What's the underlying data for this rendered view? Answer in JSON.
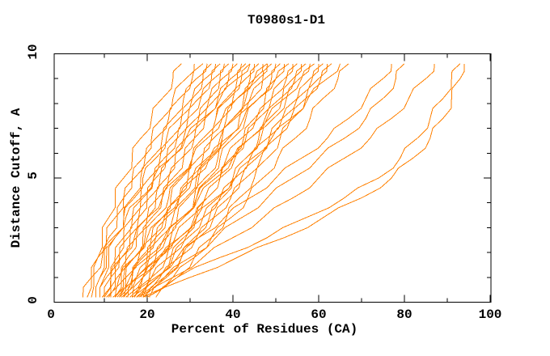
{
  "title": "T0980s1-D1",
  "chart_data": {
    "type": "line",
    "title": "T0980s1-D1",
    "xlabel": "Percent of Residues (CA)",
    "ylabel": "Distance Cutoff, A",
    "xlim": [
      0,
      100
    ],
    "ylim": [
      0,
      10
    ],
    "grid": false,
    "legend": null,
    "axis_color": "#000000",
    "line_color": "#ff8000",
    "x_major_ticks": [
      0,
      20,
      40,
      60,
      80,
      100
    ],
    "x_minor_ticks": [
      10,
      30,
      50,
      70,
      90
    ],
    "x_tick_labels": [
      "0",
      "20",
      "40",
      "60",
      "80",
      "100"
    ],
    "y_major_ticks": [
      0,
      5,
      10
    ],
    "y_minor_ticks": [
      1,
      2,
      3,
      4,
      6,
      7,
      8,
      9
    ],
    "y_tick_labels": [
      "0",
      "5",
      "10"
    ],
    "y_levels": [
      0.2,
      1.0,
      1.8,
      2.6,
      3.4,
      4.2,
      5.0,
      5.8,
      6.6,
      7.4,
      8.2,
      9.0,
      9.6
    ],
    "series": [
      {
        "x": [
          7,
          7.5,
          8.5,
          9.5,
          11,
          12.5,
          14.5,
          16.5,
          18.5,
          21,
          23.5,
          26,
          28
        ]
      },
      {
        "x": [
          8,
          9,
          10,
          11,
          13,
          14.5,
          16.5,
          19,
          21,
          23.5,
          26,
          29,
          31
        ]
      },
      {
        "x": [
          6,
          7,
          8.5,
          10.5,
          12.5,
          14.5,
          17,
          19.5,
          22,
          25,
          27.5,
          30.5,
          33
        ]
      },
      {
        "x": [
          9,
          10,
          11,
          12.5,
          14.5,
          16.5,
          18.5,
          21,
          23.5,
          26,
          28.5,
          31.5,
          34
        ]
      },
      {
        "x": [
          10,
          11.5,
          13,
          14.5,
          16.5,
          18.5,
          20.5,
          23,
          25.5,
          28,
          30.5,
          33,
          35
        ]
      },
      {
        "x": [
          8,
          9,
          10.5,
          12.5,
          14.5,
          17,
          19,
          22,
          24.5,
          27.5,
          30.5,
          33.5,
          36
        ]
      },
      {
        "x": [
          11,
          12.5,
          14,
          16,
          18,
          20,
          22,
          24.5,
          27,
          29.5,
          32,
          35,
          37
        ]
      },
      {
        "x": [
          9,
          10.5,
          12.5,
          14.5,
          16.5,
          19,
          21.5,
          24,
          27,
          29.5,
          32.5,
          35.5,
          38
        ]
      },
      {
        "x": [
          12.5,
          14,
          15.5,
          17.5,
          20,
          22,
          24.5,
          26.5,
          29,
          32,
          34.5,
          37,
          39
        ]
      },
      {
        "x": [
          10,
          11.5,
          13.5,
          15.5,
          18,
          20.5,
          23,
          25.5,
          28.5,
          31.5,
          34.5,
          37.5,
          40
        ]
      },
      {
        "x": [
          13,
          15,
          17,
          19,
          21,
          23.5,
          26,
          28.5,
          31,
          33.5,
          36,
          39,
          41
        ]
      },
      {
        "x": [
          11.5,
          13,
          15,
          17.5,
          20,
          22.5,
          25,
          28,
          31,
          33.5,
          36.5,
          39.5,
          42
        ]
      },
      {
        "x": [
          14.5,
          16.5,
          18.5,
          21,
          23.5,
          25.5,
          28,
          30.5,
          33,
          36,
          38.5,
          41,
          43
        ]
      },
      {
        "x": [
          5,
          7,
          9.5,
          12,
          15,
          18.5,
          21.5,
          25.5,
          29,
          33,
          37,
          41,
          44
        ]
      },
      {
        "x": [
          12.5,
          14.5,
          17,
          19.5,
          22,
          25,
          27.5,
          30.5,
          33,
          36,
          39,
          42,
          44
        ]
      },
      {
        "x": [
          15.5,
          17.5,
          20,
          22,
          24.5,
          27,
          29.5,
          32,
          35,
          37.5,
          40,
          43,
          45
        ]
      },
      {
        "x": [
          13.5,
          16.5,
          19,
          22,
          24.5,
          27.5,
          30,
          33,
          35.5,
          38.5,
          41,
          44,
          46
        ]
      },
      {
        "x": [
          16.5,
          19,
          22,
          24.5,
          27,
          29.5,
          32,
          35,
          37.5,
          40,
          42.5,
          45,
          47
        ]
      },
      {
        "x": [
          9.5,
          11.5,
          14,
          17,
          20,
          23.5,
          27,
          30.5,
          34,
          37.5,
          41,
          45,
          48
        ]
      },
      {
        "x": [
          14.5,
          17.5,
          20.5,
          23,
          26,
          29,
          31.5,
          34.5,
          37.5,
          40,
          43,
          46,
          48
        ]
      },
      {
        "x": [
          17.5,
          20.5,
          23,
          25.5,
          28.5,
          31,
          33.5,
          36.5,
          39,
          41.5,
          44.5,
          47,
          49
        ]
      },
      {
        "x": [
          12.5,
          15,
          18,
          21,
          24,
          27.5,
          30.5,
          34,
          37,
          40.5,
          44,
          47.5,
          50
        ]
      },
      {
        "x": [
          16,
          19,
          22.5,
          25.5,
          28.5,
          31.5,
          34.5,
          37,
          40,
          43,
          46,
          49,
          51
        ]
      },
      {
        "x": [
          19,
          22.5,
          25.5,
          28.5,
          31.5,
          34,
          37,
          39.5,
          42.5,
          45,
          47.5,
          50,
          52
        ]
      },
      {
        "x": [
          10.5,
          13.5,
          17,
          20,
          23.5,
          27.5,
          31,
          34.5,
          38.5,
          42.5,
          46,
          50,
          53
        ]
      },
      {
        "x": [
          17,
          21,
          24.5,
          27.5,
          31,
          34,
          37,
          40,
          43,
          46,
          49,
          52,
          54
        ]
      },
      {
        "x": [
          14,
          17.5,
          21,
          24.5,
          28,
          31.5,
          35,
          38.5,
          42,
          45.5,
          49,
          52.5,
          55
        ]
      },
      {
        "x": [
          20.5,
          24.5,
          28,
          31,
          34.5,
          37.5,
          40,
          43,
          46,
          48.5,
          51.5,
          54,
          56
        ]
      },
      {
        "x": [
          15,
          19,
          23,
          26.5,
          30,
          33.5,
          37,
          40.5,
          44,
          47.5,
          51,
          54.5,
          57
        ]
      },
      {
        "x": [
          18.5,
          22.5,
          26,
          29.5,
          33,
          36.5,
          40,
          43,
          46.5,
          49.5,
          52.5,
          55.5,
          58
        ]
      },
      {
        "x": [
          12,
          16,
          20,
          24,
          28,
          32,
          36,
          40,
          44,
          48,
          52,
          56,
          59
        ]
      },
      {
        "x": [
          19.5,
          24,
          28,
          32,
          35.5,
          39,
          42,
          45.5,
          48.5,
          51.5,
          55,
          58,
          60
        ]
      },
      {
        "x": [
          16.5,
          21,
          25,
          29,
          33,
          37,
          40.5,
          44,
          48,
          51.5,
          55,
          58.5,
          61
        ]
      },
      {
        "x": [
          22,
          27,
          31,
          35,
          38.5,
          41.5,
          45,
          48,
          51,
          54,
          57,
          60,
          62
        ]
      },
      {
        "x": [
          17.5,
          23,
          27.5,
          31.5,
          35.5,
          39.5,
          43,
          46.5,
          50,
          53.5,
          57,
          60.5,
          63
        ]
      },
      {
        "x": [
          13.5,
          18,
          23,
          27.5,
          31.5,
          36,
          40.5,
          44.5,
          49,
          53.5,
          57.5,
          62,
          65
        ]
      },
      {
        "x": [
          20,
          26,
          31,
          35,
          39.5,
          43.5,
          47,
          50.5,
          54.5,
          58,
          61,
          64.5,
          67
        ]
      },
      {
        "x": [
          17,
          22,
          27,
          32,
          38,
          44,
          50,
          56,
          62,
          67,
          71,
          75,
          77
        ]
      },
      {
        "x": [
          18,
          24,
          30,
          36,
          42,
          48,
          54,
          60,
          66,
          71,
          75,
          78,
          80
        ]
      },
      {
        "x": [
          19,
          26,
          33,
          40,
          47,
          54,
          60,
          66,
          72,
          77,
          81,
          85,
          87
        ]
      },
      {
        "x": [
          19,
          27,
          37,
          48,
          57,
          66,
          74,
          79,
          83,
          86,
          89,
          91,
          93
        ]
      },
      {
        "x": [
          20,
          30,
          41,
          52,
          61,
          70,
          77,
          82,
          86,
          89,
          91,
          93,
          94
        ]
      }
    ]
  }
}
